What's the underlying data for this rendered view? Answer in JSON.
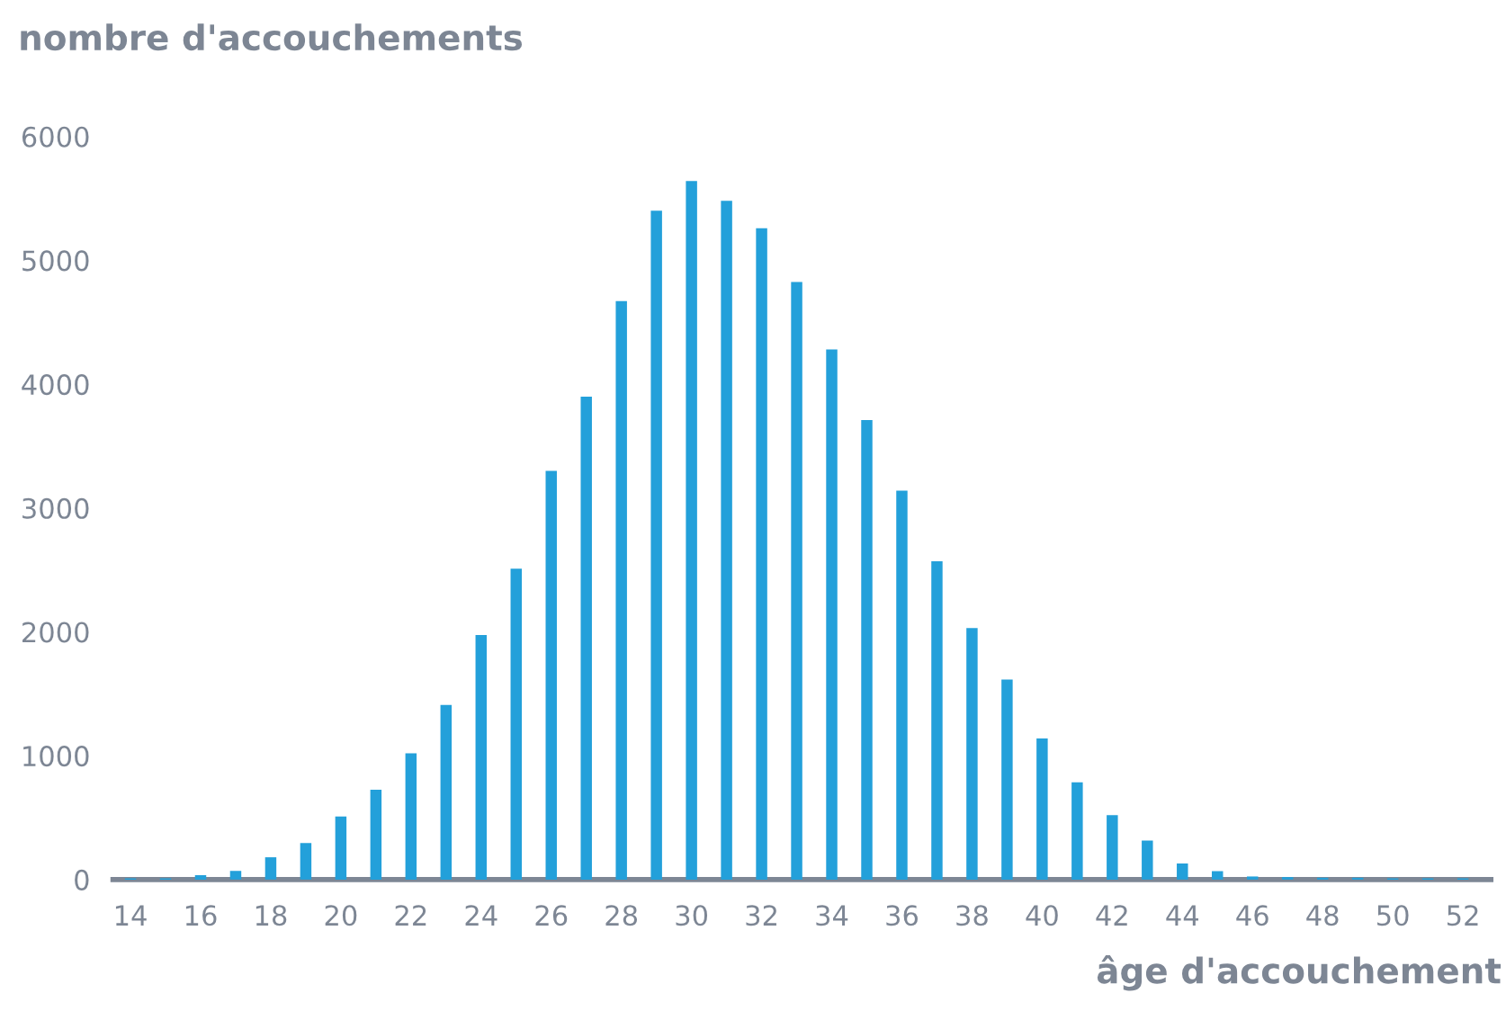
{
  "chart_data": {
    "type": "bar",
    "xlabel": "âge d'accouchement",
    "ylabel": "nombre d'accouchements",
    "x": [
      14,
      15,
      16,
      17,
      18,
      19,
      20,
      21,
      22,
      23,
      24,
      25,
      26,
      27,
      28,
      29,
      30,
      31,
      32,
      33,
      34,
      35,
      36,
      37,
      38,
      39,
      40,
      41,
      42,
      43,
      44,
      45,
      46,
      47,
      48,
      49,
      50,
      51,
      52
    ],
    "values": [
      10,
      10,
      35,
      70,
      180,
      295,
      510,
      725,
      1020,
      1410,
      1975,
      2510,
      3300,
      3900,
      4670,
      5400,
      5640,
      5480,
      5260,
      4825,
      4280,
      3710,
      3140,
      2570,
      2030,
      1615,
      1140,
      786,
      520,
      315,
      130,
      68,
      25,
      20,
      15,
      15,
      10,
      10,
      10
    ],
    "color": "#23a0da",
    "xlim": [
      13.5,
      52.8
    ],
    "xticks": [
      14,
      16,
      18,
      20,
      22,
      24,
      26,
      28,
      30,
      32,
      34,
      36,
      38,
      40,
      42,
      44,
      46,
      48,
      50,
      52
    ],
    "ylim": [
      0,
      6000
    ],
    "yticks": [
      0,
      1000,
      2000,
      3000,
      4000,
      5000,
      6000
    ],
    "grid": false,
    "legend": false
  }
}
